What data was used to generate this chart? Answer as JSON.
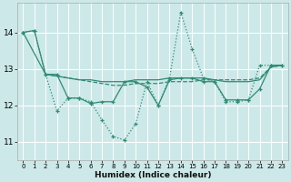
{
  "xlabel": "Humidex (Indice chaleur)",
  "background_color": "#cce8e8",
  "grid_color": "#ffffff",
  "line_color": "#2e8b74",
  "xlim": [
    -0.5,
    23.5
  ],
  "ylim": [
    10.5,
    14.8
  ],
  "yticks": [
    11,
    12,
    13,
    14
  ],
  "xticks": [
    0,
    1,
    2,
    3,
    4,
    5,
    6,
    7,
    8,
    9,
    10,
    11,
    12,
    13,
    14,
    15,
    16,
    17,
    18,
    19,
    20,
    21,
    22,
    23
  ],
  "line1_x": [
    0,
    1,
    2,
    3,
    4,
    5,
    6,
    7,
    8,
    9,
    10,
    11,
    12,
    13,
    14,
    15,
    16,
    17,
    18,
    19,
    20,
    21,
    22,
    23
  ],
  "line1_y": [
    14.0,
    14.05,
    12.85,
    11.85,
    12.2,
    12.2,
    12.1,
    11.6,
    11.15,
    11.05,
    11.5,
    12.65,
    12.0,
    12.75,
    14.55,
    13.55,
    12.75,
    12.65,
    12.1,
    12.1,
    12.15,
    13.1,
    13.1,
    13.1
  ],
  "line2_x": [
    0,
    2,
    3,
    4,
    5,
    6,
    7,
    8,
    9,
    10,
    11,
    12,
    13,
    14,
    15,
    16,
    17,
    18,
    19,
    20,
    21,
    22,
    23
  ],
  "line2_y": [
    14.0,
    12.85,
    12.8,
    12.75,
    12.7,
    12.7,
    12.65,
    12.65,
    12.65,
    12.7,
    12.7,
    12.7,
    12.75,
    12.75,
    12.75,
    12.75,
    12.7,
    12.65,
    12.65,
    12.65,
    12.7,
    13.05,
    13.1
  ],
  "line3_x": [
    0,
    1,
    2,
    3,
    4,
    5,
    6,
    7,
    8,
    9,
    10,
    11,
    12,
    13,
    14,
    15,
    16,
    17,
    18,
    19,
    20,
    21,
    22,
    23
  ],
  "line3_y": [
    14.0,
    14.05,
    12.85,
    12.85,
    12.2,
    12.2,
    12.05,
    12.1,
    12.1,
    12.65,
    12.65,
    12.5,
    12.0,
    12.7,
    12.75,
    12.75,
    12.65,
    12.65,
    12.15,
    12.15,
    12.15,
    12.45,
    13.1,
    13.1
  ],
  "line4_x": [
    2,
    3,
    4,
    5,
    6,
    7,
    8,
    9,
    10,
    11,
    12,
    13,
    14,
    15,
    16,
    17,
    18,
    19,
    20,
    21,
    22,
    23
  ],
  "line4_y": [
    12.85,
    12.8,
    12.75,
    12.7,
    12.65,
    12.6,
    12.55,
    12.55,
    12.6,
    12.6,
    12.6,
    12.65,
    12.65,
    12.65,
    12.7,
    12.7,
    12.7,
    12.7,
    12.7,
    12.75,
    13.05,
    13.1
  ]
}
